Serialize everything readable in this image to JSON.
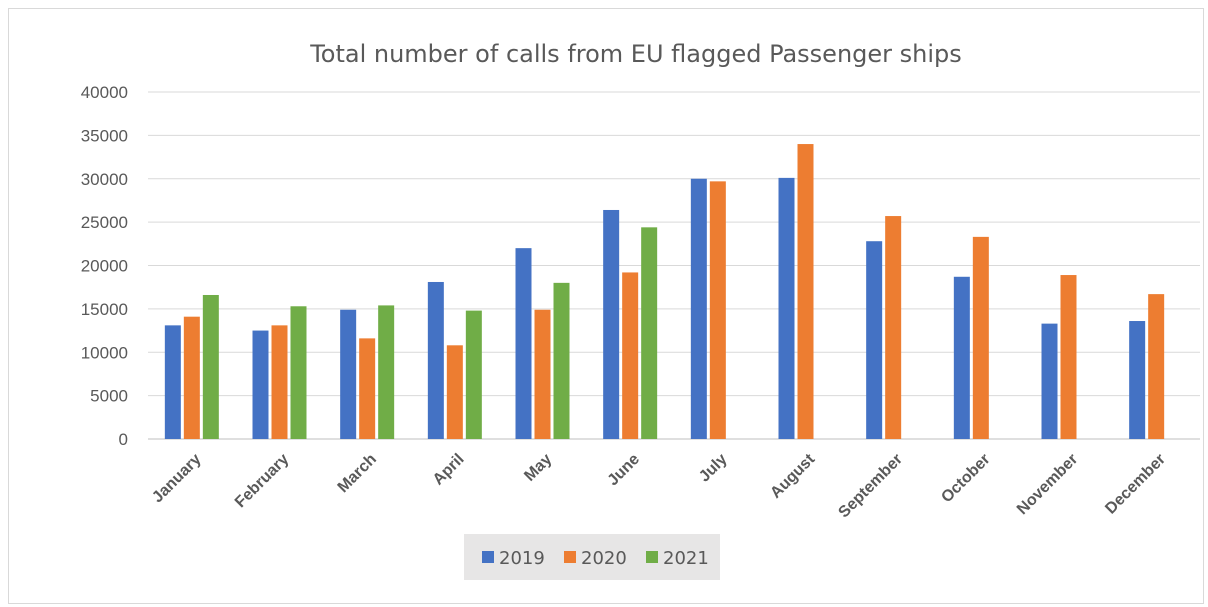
{
  "chart_data": {
    "type": "bar",
    "title": "Total number of calls from EU flagged Passenger ships",
    "xlabel": "",
    "ylabel": "",
    "ylim": [
      0,
      40000
    ],
    "yticks": [
      "0",
      "5000",
      "10000",
      "15000",
      "20000",
      "25000",
      "30000",
      "35000",
      "40000"
    ],
    "grid": true,
    "legend_position": "bottom",
    "categories": [
      "January",
      "February",
      "March",
      "April",
      "May",
      "June",
      "July",
      "August",
      "September",
      "October",
      "November",
      "December"
    ],
    "series": [
      {
        "name": "2019",
        "color": "#4472c4",
        "values": [
          13100,
          12500,
          14900,
          18100,
          22000,
          26400,
          30000,
          30100,
          22800,
          18700,
          13300,
          13600
        ]
      },
      {
        "name": "2020",
        "color": "#ed7d31",
        "values": [
          14100,
          13100,
          11600,
          10800,
          14900,
          19200,
          29700,
          34000,
          25700,
          23300,
          18900,
          16700
        ]
      },
      {
        "name": "2021",
        "color": "#70ad47",
        "values": [
          16600,
          15300,
          15400,
          14800,
          18000,
          24400,
          null,
          null,
          null,
          null,
          null,
          null
        ]
      }
    ]
  }
}
